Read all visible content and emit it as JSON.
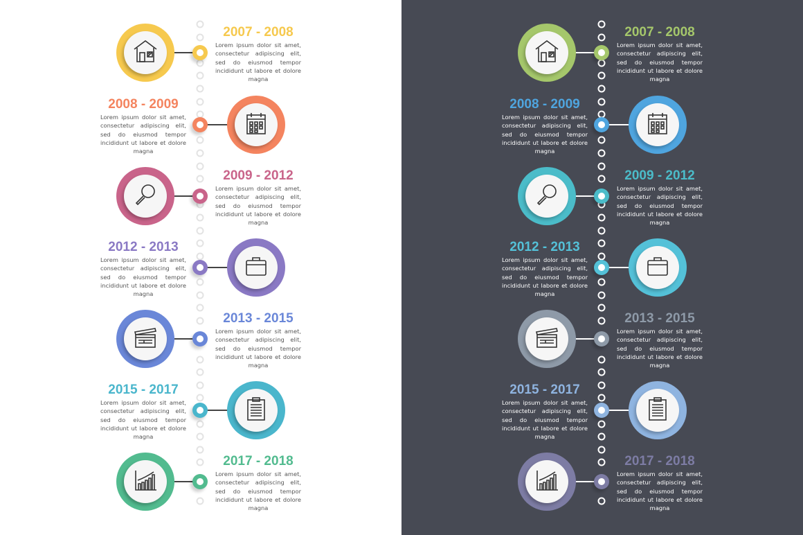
{
  "description_text": "Lorem ipsum dolor sit amet, consectetur adipiscing elit, sed do eiusmod tempor incididunt ut labore et dolore magna",
  "panels": [
    {
      "theme": "light",
      "background": "#ffffff",
      "items": [
        {
          "title": "2007 - 2008",
          "icon": "house-icon",
          "color": "#f6c94e"
        },
        {
          "title": "2008 - 2009",
          "icon": "calendar-icon",
          "color": "#f4845f"
        },
        {
          "title": "2009 - 2012",
          "icon": "magnifier-icon",
          "color": "#c9648a"
        },
        {
          "title": "2012 - 2013",
          "icon": "briefcase-icon",
          "color": "#8a79c4"
        },
        {
          "title": "2013 - 2015",
          "icon": "clapperboard-icon",
          "color": "#6a87d8"
        },
        {
          "title": "2015 - 2017",
          "icon": "clipboard-icon",
          "color": "#4ab6cc"
        },
        {
          "title": "2017 - 2018",
          "icon": "chart-icon",
          "color": "#52bb8f"
        }
      ]
    },
    {
      "theme": "dark",
      "background": "#474a54",
      "items": [
        {
          "title": "2007 - 2008",
          "icon": "house-icon",
          "color": "#a5c76b"
        },
        {
          "title": "2008 - 2009",
          "icon": "calendar-icon",
          "color": "#4fa5df"
        },
        {
          "title": "2009 - 2012",
          "icon": "magnifier-icon",
          "color": "#4bbcc9"
        },
        {
          "title": "2012 - 2013",
          "icon": "briefcase-icon",
          "color": "#54c1d8"
        },
        {
          "title": "2013 - 2015",
          "icon": "clapperboard-icon",
          "color": "#8e9aa8"
        },
        {
          "title": "2015 - 2017",
          "icon": "clipboard-icon",
          "color": "#8fb4e0"
        },
        {
          "title": "2017 - 2018",
          "icon": "chart-icon",
          "color": "#7d7ca4"
        }
      ]
    }
  ]
}
